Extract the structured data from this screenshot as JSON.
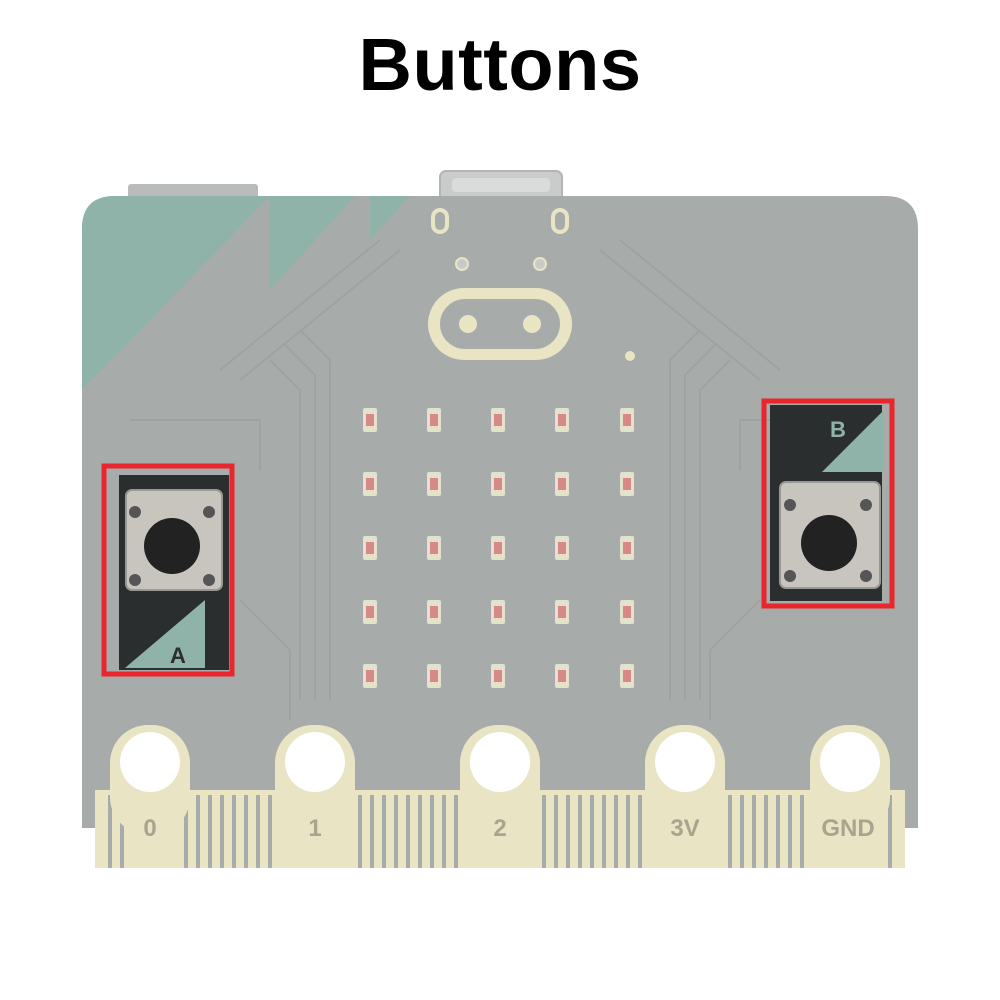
{
  "title": "Buttons",
  "colors": {
    "board": "#a7abaa",
    "board_trace": "#9fa3a2",
    "accent_teal": "#8fb3a8",
    "highlight": "#e8262b",
    "pad_cream": "#e9e5c4",
    "button_dark": "#222222",
    "led": "#d98888"
  },
  "buttons": [
    {
      "id": "a",
      "letter": "A"
    },
    {
      "id": "b",
      "letter": "B"
    }
  ],
  "pins": [
    "0",
    "1",
    "2",
    "3V",
    "GND"
  ],
  "led_grid": {
    "rows": 5,
    "cols": 5
  }
}
